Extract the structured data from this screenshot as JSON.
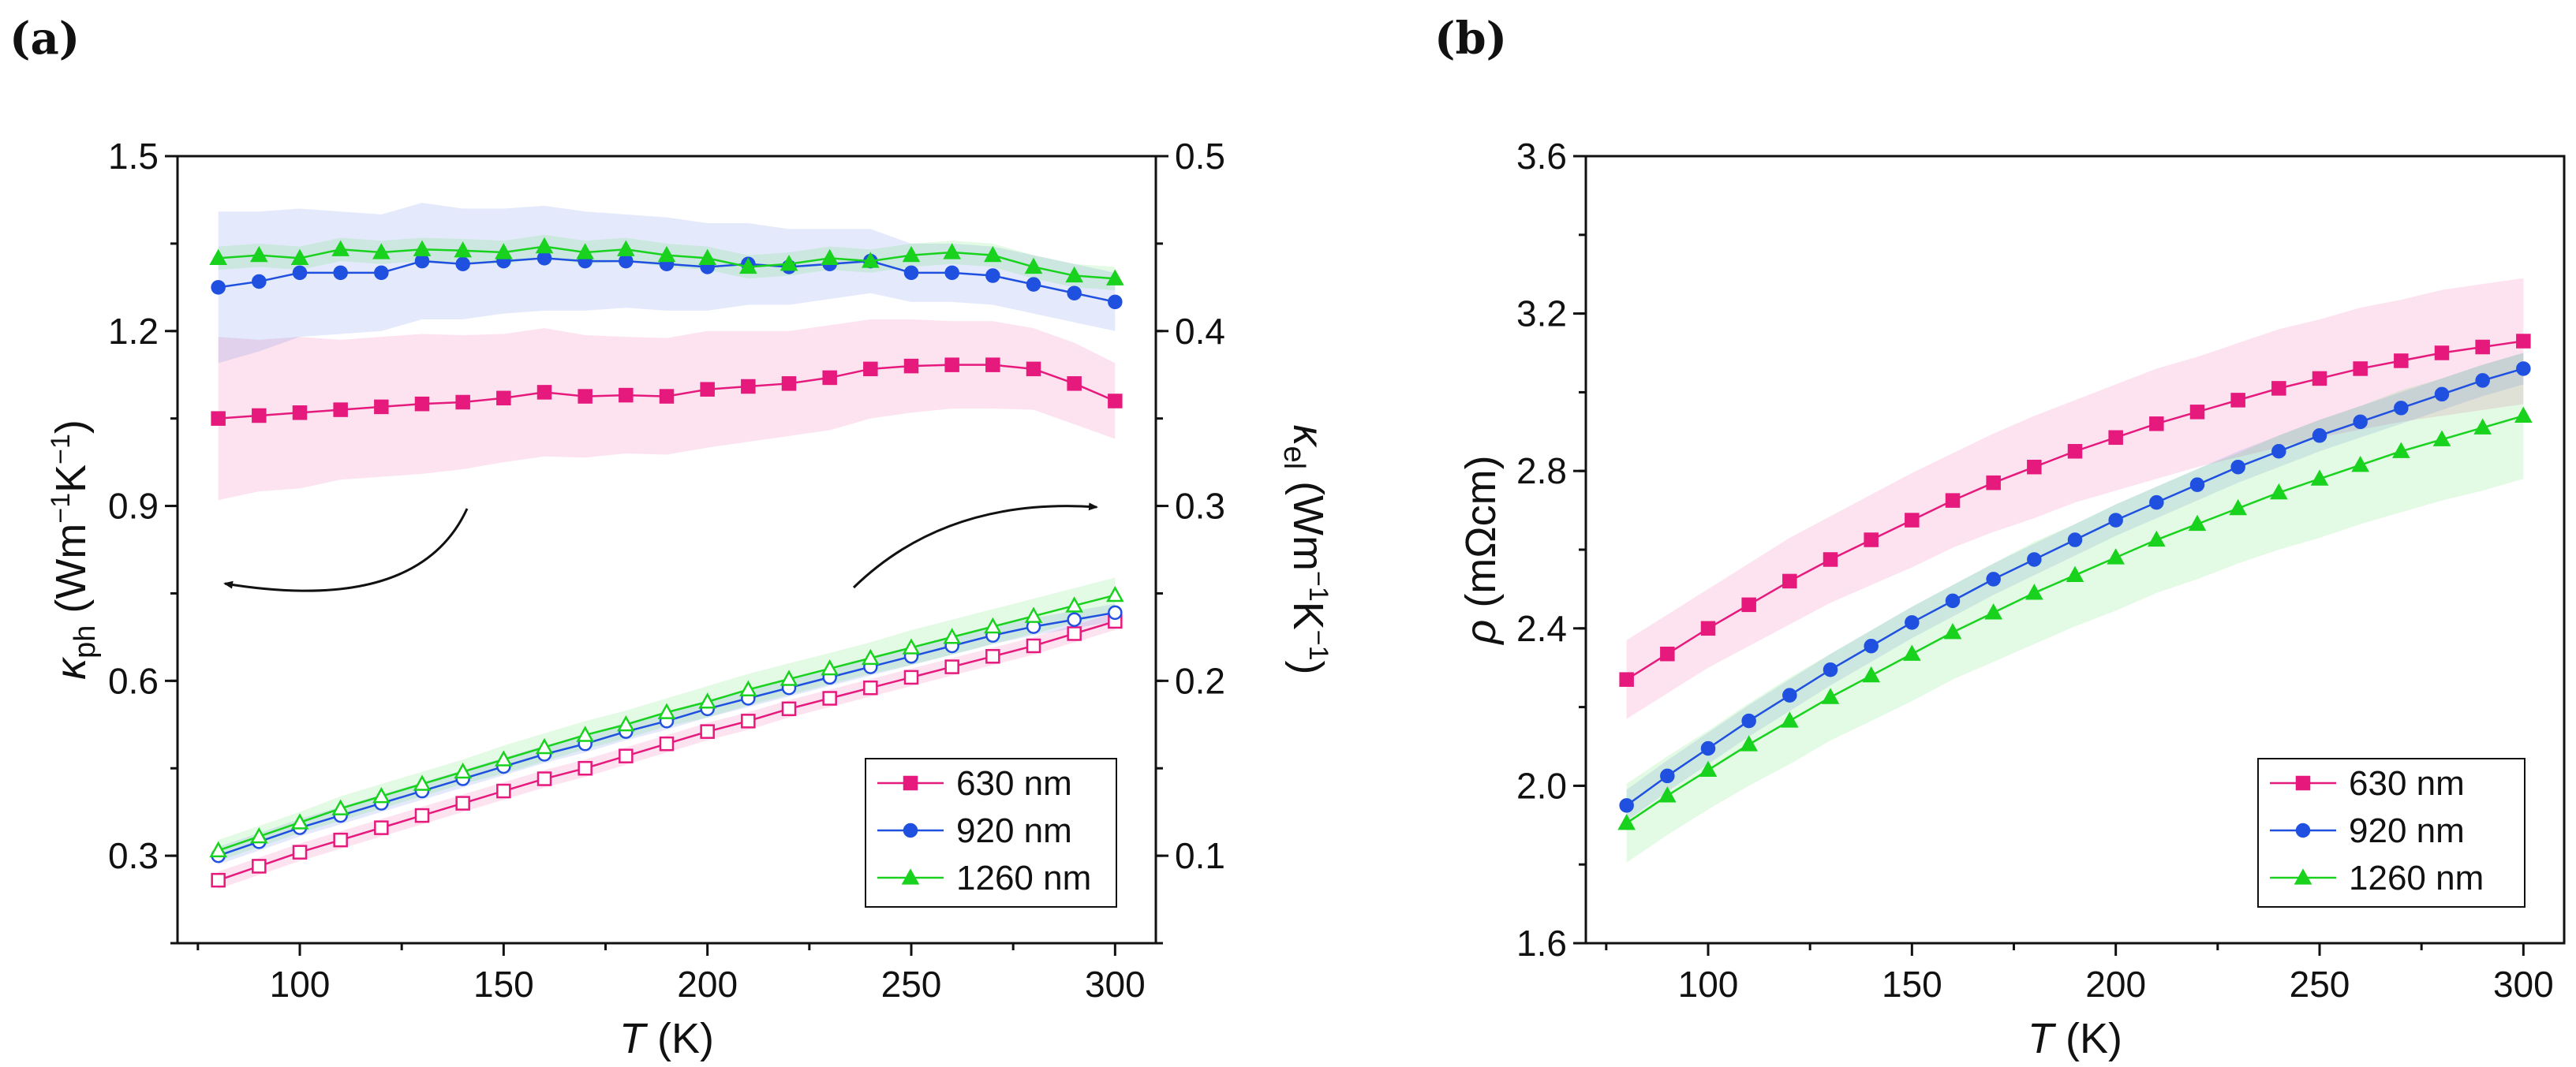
{
  "chart_data": [
    {
      "panel_label": "(a)",
      "type": "line",
      "xlabel_var": "T",
      "xlabel_unit": "(K)",
      "ylabel_left_sym": "κ",
      "ylabel_left_sub": "ph",
      "ylabel_left_unit": "(Wm",
      "ylabel_left_exp": "−1",
      "ylabel_left_unit2": "K",
      "ylabel_left_exp2": "−1",
      "ylabel_left_close": ")",
      "ylabel_right_sym": "κ",
      "ylabel_right_sub": "el",
      "ylabel_right_unit": "(Wm",
      "ylabel_right_exp": "−1",
      "ylabel_right_unit2": "K",
      "ylabel_right_exp2": "−1",
      "ylabel_right_close": ")",
      "xlim": [
        70,
        310
      ],
      "ylim_left": [
        0.15,
        1.5
      ],
      "ylim_right": [
        0.05,
        0.5
      ],
      "x_ticks": [
        "100",
        "150",
        "200",
        "250",
        "300"
      ],
      "y_ticks_left": [
        "0.3",
        "0.6",
        "0.9",
        "1.2",
        "1.5"
      ],
      "y_ticks_right": [
        "0.1",
        "0.2",
        "0.3",
        "0.4",
        "0.5"
      ],
      "x": [
        80,
        90,
        100,
        110,
        120,
        130,
        140,
        150,
        160,
        170,
        180,
        190,
        200,
        210,
        220,
        230,
        240,
        250,
        260,
        270,
        280,
        290,
        300
      ],
      "series": [
        {
          "name": "630 nm",
          "color": "#e6197d",
          "axis": "left",
          "marker": "square",
          "filled": true,
          "values": [
            1.05,
            1.055,
            1.06,
            1.065,
            1.07,
            1.075,
            1.078,
            1.085,
            1.095,
            1.088,
            1.09,
            1.088,
            1.1,
            1.105,
            1.11,
            1.12,
            1.135,
            1.14,
            1.142,
            1.142,
            1.135,
            1.11,
            1.08
          ],
          "band_halfwidth": [
            0.14,
            0.13,
            0.13,
            0.12,
            0.12,
            0.12,
            0.115,
            0.11,
            0.11,
            0.105,
            0.1,
            0.1,
            0.1,
            0.095,
            0.09,
            0.09,
            0.085,
            0.08,
            0.075,
            0.075,
            0.07,
            0.07,
            0.065
          ]
        },
        {
          "name": "920 nm",
          "color": "#1f50e0",
          "axis": "left",
          "marker": "circle",
          "filled": true,
          "values": [
            1.275,
            1.285,
            1.3,
            1.3,
            1.3,
            1.32,
            1.315,
            1.32,
            1.325,
            1.32,
            1.32,
            1.315,
            1.31,
            1.315,
            1.31,
            1.315,
            1.32,
            1.3,
            1.3,
            1.295,
            1.28,
            1.265,
            1.25
          ],
          "band_halfwidth": [
            0.13,
            0.12,
            0.11,
            0.105,
            0.1,
            0.1,
            0.095,
            0.09,
            0.09,
            0.085,
            0.08,
            0.08,
            0.075,
            0.07,
            0.065,
            0.06,
            0.055,
            0.05,
            0.05,
            0.05,
            0.05,
            0.05,
            0.05
          ]
        },
        {
          "name": "1260 nm",
          "color": "#18d21e",
          "axis": "left",
          "marker": "triangle",
          "filled": true,
          "values": [
            1.325,
            1.33,
            1.325,
            1.34,
            1.335,
            1.34,
            1.338,
            1.335,
            1.345,
            1.335,
            1.34,
            1.33,
            1.325,
            1.31,
            1.315,
            1.325,
            1.32,
            1.33,
            1.335,
            1.33,
            1.31,
            1.295,
            1.29
          ],
          "band_halfwidth": [
            0.02,
            0.02,
            0.02,
            0.02,
            0.02,
            0.02,
            0.02,
            0.02,
            0.02,
            0.02,
            0.02,
            0.02,
            0.02,
            0.02,
            0.02,
            0.02,
            0.02,
            0.02,
            0.02,
            0.02,
            0.02,
            0.02,
            0.02
          ]
        },
        {
          "name": "630 nm (κel)",
          "color": "#e6197d",
          "axis": "right",
          "marker": "square",
          "filled": false,
          "values": [
            0.086,
            0.094,
            0.102,
            0.109,
            0.116,
            0.123,
            0.13,
            0.137,
            0.144,
            0.15,
            0.157,
            0.164,
            0.171,
            0.177,
            0.184,
            0.19,
            0.196,
            0.202,
            0.208,
            0.214,
            0.22,
            0.227,
            0.234
          ],
          "band_halfwidth": [
            0.005,
            0.005,
            0.005,
            0.005,
            0.005,
            0.005,
            0.005,
            0.005,
            0.005,
            0.005,
            0.005,
            0.005,
            0.005,
            0.005,
            0.005,
            0.005,
            0.005,
            0.005,
            0.005,
            0.005,
            0.005,
            0.005,
            0.005
          ]
        },
        {
          "name": "920 nm (κel)",
          "color": "#1f50e0",
          "axis": "right",
          "marker": "circle",
          "filled": false,
          "values": [
            0.1,
            0.108,
            0.116,
            0.123,
            0.13,
            0.137,
            0.144,
            0.151,
            0.158,
            0.164,
            0.171,
            0.177,
            0.184,
            0.19,
            0.196,
            0.202,
            0.208,
            0.214,
            0.22,
            0.226,
            0.231,
            0.235,
            0.239
          ],
          "band_halfwidth": [
            0.005,
            0.005,
            0.005,
            0.005,
            0.005,
            0.005,
            0.005,
            0.005,
            0.005,
            0.005,
            0.005,
            0.005,
            0.005,
            0.005,
            0.005,
            0.005,
            0.005,
            0.005,
            0.005,
            0.005,
            0.005,
            0.005,
            0.005
          ]
        },
        {
          "name": "1260 nm (κel)",
          "color": "#18d21e",
          "axis": "right",
          "marker": "triangle",
          "filled": false,
          "values": [
            0.103,
            0.111,
            0.119,
            0.127,
            0.134,
            0.141,
            0.148,
            0.155,
            0.162,
            0.169,
            0.175,
            0.182,
            0.188,
            0.195,
            0.201,
            0.207,
            0.213,
            0.219,
            0.225,
            0.231,
            0.237,
            0.243,
            0.249
          ],
          "band_halfwidth": [
            0.006,
            0.006,
            0.006,
            0.007,
            0.007,
            0.007,
            0.007,
            0.008,
            0.008,
            0.008,
            0.008,
            0.008,
            0.009,
            0.009,
            0.009,
            0.009,
            0.009,
            0.01,
            0.01,
            0.01,
            0.01,
            0.01,
            0.01
          ]
        }
      ],
      "legend": [
        "630 nm",
        "920 nm",
        "1260 nm"
      ],
      "legend_position": "bottom-right"
    },
    {
      "panel_label": "(b)",
      "type": "line",
      "xlabel_var": "T",
      "xlabel_unit": "(K)",
      "ylabel_sym": "ρ",
      "ylabel_unit": "(mΩcm)",
      "xlim": [
        70,
        310
      ],
      "ylim": [
        1.6,
        3.6
      ],
      "x_ticks": [
        "100",
        "150",
        "200",
        "250",
        "300"
      ],
      "y_ticks": [
        "1.6",
        "2.0",
        "2.4",
        "2.8",
        "3.2",
        "3.6"
      ],
      "x": [
        80,
        90,
        100,
        110,
        120,
        130,
        140,
        150,
        160,
        170,
        180,
        190,
        200,
        210,
        220,
        230,
        240,
        250,
        260,
        270,
        280,
        290,
        300
      ],
      "series": [
        {
          "name": "630 nm",
          "color": "#e6197d",
          "marker": "square",
          "filled": true,
          "values": [
            2.27,
            2.335,
            2.4,
            2.46,
            2.52,
            2.575,
            2.625,
            2.675,
            2.725,
            2.77,
            2.81,
            2.85,
            2.885,
            2.92,
            2.95,
            2.98,
            3.01,
            3.035,
            3.06,
            3.08,
            3.1,
            3.115,
            3.13
          ],
          "band_halfwidth": [
            0.1,
            0.1,
            0.1,
            0.105,
            0.11,
            0.11,
            0.115,
            0.12,
            0.12,
            0.125,
            0.13,
            0.13,
            0.135,
            0.14,
            0.14,
            0.145,
            0.15,
            0.15,
            0.155,
            0.155,
            0.16,
            0.16,
            0.16
          ]
        },
        {
          "name": "920 nm",
          "color": "#1f50e0",
          "marker": "circle",
          "filled": true,
          "values": [
            1.95,
            2.025,
            2.095,
            2.165,
            2.23,
            2.295,
            2.355,
            2.415,
            2.47,
            2.525,
            2.575,
            2.625,
            2.675,
            2.72,
            2.765,
            2.81,
            2.85,
            2.89,
            2.925,
            2.96,
            2.995,
            3.03,
            3.06
          ],
          "band_halfwidth": [
            0.04,
            0.04,
            0.04,
            0.04,
            0.04,
            0.04,
            0.04,
            0.04,
            0.04,
            0.04,
            0.04,
            0.04,
            0.04,
            0.04,
            0.04,
            0.04,
            0.04,
            0.04,
            0.04,
            0.04,
            0.04,
            0.04,
            0.04
          ]
        },
        {
          "name": "1260 nm",
          "color": "#18d21e",
          "marker": "triangle",
          "filled": true,
          "values": [
            1.905,
            1.975,
            2.04,
            2.105,
            2.165,
            2.225,
            2.28,
            2.335,
            2.39,
            2.44,
            2.49,
            2.535,
            2.58,
            2.625,
            2.665,
            2.705,
            2.745,
            2.78,
            2.815,
            2.85,
            2.88,
            2.91,
            2.94
          ],
          "band_halfwidth": [
            0.1,
            0.1,
            0.1,
            0.105,
            0.11,
            0.11,
            0.115,
            0.12,
            0.12,
            0.125,
            0.13,
            0.13,
            0.135,
            0.135,
            0.14,
            0.14,
            0.145,
            0.15,
            0.15,
            0.155,
            0.155,
            0.16,
            0.16
          ]
        }
      ],
      "legend": [
        "630 nm",
        "920 nm",
        "1260 nm"
      ],
      "legend_position": "bottom-right"
    }
  ]
}
